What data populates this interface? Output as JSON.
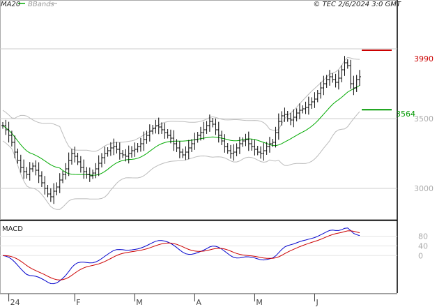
{
  "header": {
    "legend_ma": "MA20",
    "legend_bbands": "BBands",
    "timestamp": "© TEC 2/6/2024 3:0 GMT"
  },
  "colors": {
    "price": "#000000",
    "ma": "#00aa00",
    "bbands": "#bbbbbb",
    "resistance": "#cc0000",
    "support": "#009900",
    "macd": "#0000cc",
    "signal": "#cc0000",
    "grid": "#cccccc"
  },
  "chart_data": [
    {
      "type": "ohlc",
      "title": "",
      "x_ticks": [
        "24",
        "F",
        "M",
        "A",
        "M",
        "J"
      ],
      "y_ticks": [
        3000,
        3500
      ],
      "ylim": [
        2780,
        4350
      ],
      "grid": true,
      "levels": {
        "resistance": {
          "label": "3990",
          "value": 3990
        },
        "support": {
          "label": "3564",
          "value": 3564
        }
      },
      "close": [
        3450,
        3420,
        3380,
        3330,
        3260,
        3200,
        3150,
        3120,
        3100,
        3140,
        3160,
        3130,
        3090,
        3040,
        3000,
        2960,
        2940,
        2980,
        3010,
        3060,
        3100,
        3140,
        3200,
        3250,
        3230,
        3190,
        3150,
        3120,
        3100,
        3090,
        3110,
        3140,
        3180,
        3220,
        3250,
        3270,
        3290,
        3300,
        3280,
        3250,
        3240,
        3230,
        3250,
        3270,
        3280,
        3300,
        3320,
        3350,
        3380,
        3410,
        3430,
        3450,
        3440,
        3420,
        3400,
        3380,
        3360,
        3320,
        3290,
        3260,
        3240,
        3260,
        3290,
        3320,
        3350,
        3380,
        3400,
        3420,
        3450,
        3480,
        3460,
        3420,
        3380,
        3340,
        3300,
        3270,
        3250,
        3260,
        3290,
        3320,
        3340,
        3350,
        3320,
        3300,
        3280,
        3260,
        3250,
        3270,
        3300,
        3320,
        3330,
        3400,
        3480,
        3520,
        3530,
        3500,
        3490,
        3510,
        3540,
        3560,
        3570,
        3580,
        3600,
        3620,
        3640,
        3680,
        3720,
        3750,
        3780,
        3800,
        3780,
        3760,
        3790,
        3850,
        3900,
        3880,
        3750,
        3720,
        3780,
        3800
      ]
    },
    {
      "type": "line",
      "title": "MACD",
      "y_ticks": [
        0,
        40,
        80
      ],
      "ylim": [
        -155,
        145
      ]
    }
  ]
}
